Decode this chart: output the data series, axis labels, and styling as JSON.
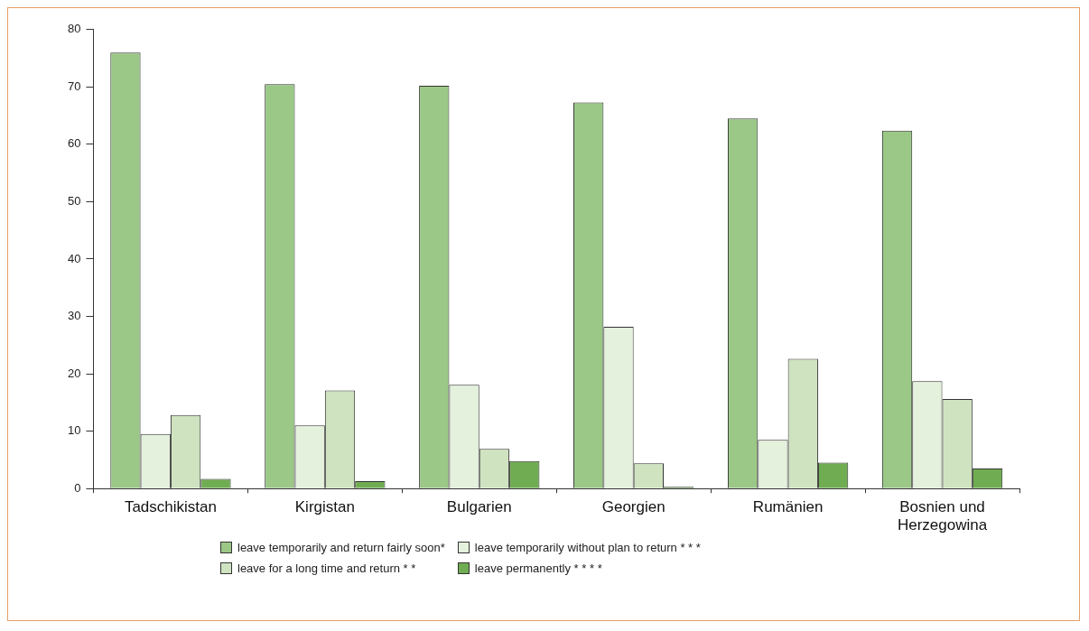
{
  "chart_data": {
    "type": "bar",
    "categories": [
      "Tadschikistan",
      "Kirgistan",
      "Bulgarien",
      "Georgien",
      "Rumänien",
      "Bosnien und Herzegowina"
    ],
    "series": [
      {
        "name": "leave temporarily and return fairly soon*",
        "color": "#9bc887",
        "values": [
          76,
          70.5,
          70.2,
          67.3,
          64.5,
          62.4
        ]
      },
      {
        "name": "leave temporarily without plan to return  * * *",
        "color": "#e4f1dc",
        "values": [
          9.5,
          11,
          18.1,
          28.2,
          8.5,
          18.7
        ]
      },
      {
        "name": "leave for a long time and return  * *",
        "color": "#cfe3c0",
        "values": [
          12.8,
          17.1,
          6.9,
          4.4,
          22.6,
          15.6
        ]
      },
      {
        "name": "leave permanently   * * * *",
        "color": "#70ad52",
        "values": [
          1.7,
          1.3,
          4.8,
          0.3,
          4.5,
          3.5
        ]
      }
    ],
    "ylim": [
      0,
      80
    ],
    "yticks": [
      0,
      10,
      20,
      30,
      40,
      50,
      60,
      70,
      80
    ],
    "grid": false,
    "legend": "bottom"
  }
}
